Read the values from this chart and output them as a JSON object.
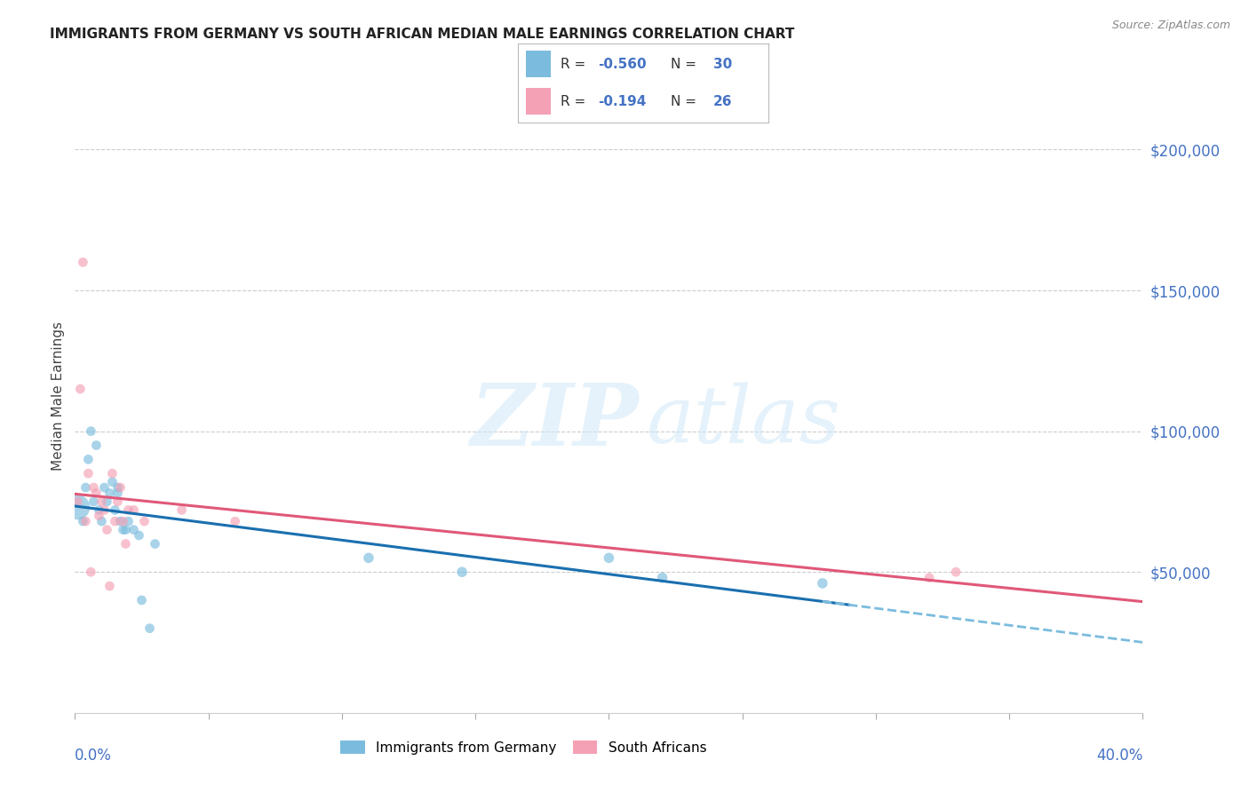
{
  "title": "IMMIGRANTS FROM GERMANY VS SOUTH AFRICAN MEDIAN MALE EARNINGS CORRELATION CHART",
  "source": "Source: ZipAtlas.com",
  "ylabel": "Median Male Earnings",
  "ytick_values": [
    50000,
    100000,
    150000,
    200000
  ],
  "ytick_labels": [
    "$50,000",
    "$100,000",
    "$150,000",
    "$200,000"
  ],
  "xlim": [
    0.0,
    0.4
  ],
  "ylim": [
    0,
    225000
  ],
  "legend_r1": "-0.560",
  "legend_n1": "30",
  "legend_r2": "-0.194",
  "legend_n2": "26",
  "blue_color": "#7bbcde",
  "pink_color": "#f4a0b5",
  "blue_line_color": "#1a6faf",
  "pink_line_color": "#e05878",
  "axis_color": "#4472c4",
  "grid_color": "#cccccc",
  "blue_scatter_x": [
    0.001,
    0.003,
    0.004,
    0.005,
    0.006,
    0.007,
    0.008,
    0.009,
    0.01,
    0.011,
    0.012,
    0.013,
    0.014,
    0.015,
    0.016,
    0.016,
    0.017,
    0.018,
    0.019,
    0.02,
    0.022,
    0.024,
    0.025,
    0.028,
    0.03,
    0.11,
    0.145,
    0.2,
    0.22,
    0.28
  ],
  "blue_scatter_y": [
    73000,
    68000,
    80000,
    90000,
    100000,
    75000,
    95000,
    72000,
    68000,
    80000,
    75000,
    78000,
    82000,
    72000,
    80000,
    78000,
    68000,
    65000,
    65000,
    68000,
    65000,
    63000,
    40000,
    30000,
    60000,
    55000,
    50000,
    55000,
    48000,
    46000
  ],
  "blue_scatter_s": [
    400,
    60,
    60,
    60,
    60,
    60,
    60,
    60,
    60,
    60,
    60,
    60,
    60,
    60,
    60,
    60,
    60,
    60,
    60,
    60,
    60,
    60,
    60,
    60,
    60,
    70,
    70,
    70,
    70,
    70
  ],
  "pink_scatter_x": [
    0.001,
    0.002,
    0.003,
    0.004,
    0.005,
    0.006,
    0.007,
    0.008,
    0.009,
    0.01,
    0.011,
    0.012,
    0.013,
    0.014,
    0.015,
    0.016,
    0.017,
    0.018,
    0.019,
    0.02,
    0.022,
    0.026,
    0.04,
    0.06,
    0.32,
    0.33
  ],
  "pink_scatter_y": [
    75000,
    115000,
    160000,
    68000,
    85000,
    50000,
    80000,
    78000,
    70000,
    75000,
    72000,
    65000,
    45000,
    85000,
    68000,
    75000,
    80000,
    68000,
    60000,
    72000,
    72000,
    68000,
    72000,
    68000,
    48000,
    50000
  ],
  "pink_scatter_s": [
    60,
    60,
    60,
    60,
    60,
    60,
    60,
    60,
    60,
    60,
    60,
    60,
    60,
    60,
    60,
    60,
    60,
    60,
    60,
    60,
    60,
    60,
    60,
    60,
    60,
    60
  ],
  "watermark_zip": "ZIP",
  "watermark_atlas": "atlas"
}
